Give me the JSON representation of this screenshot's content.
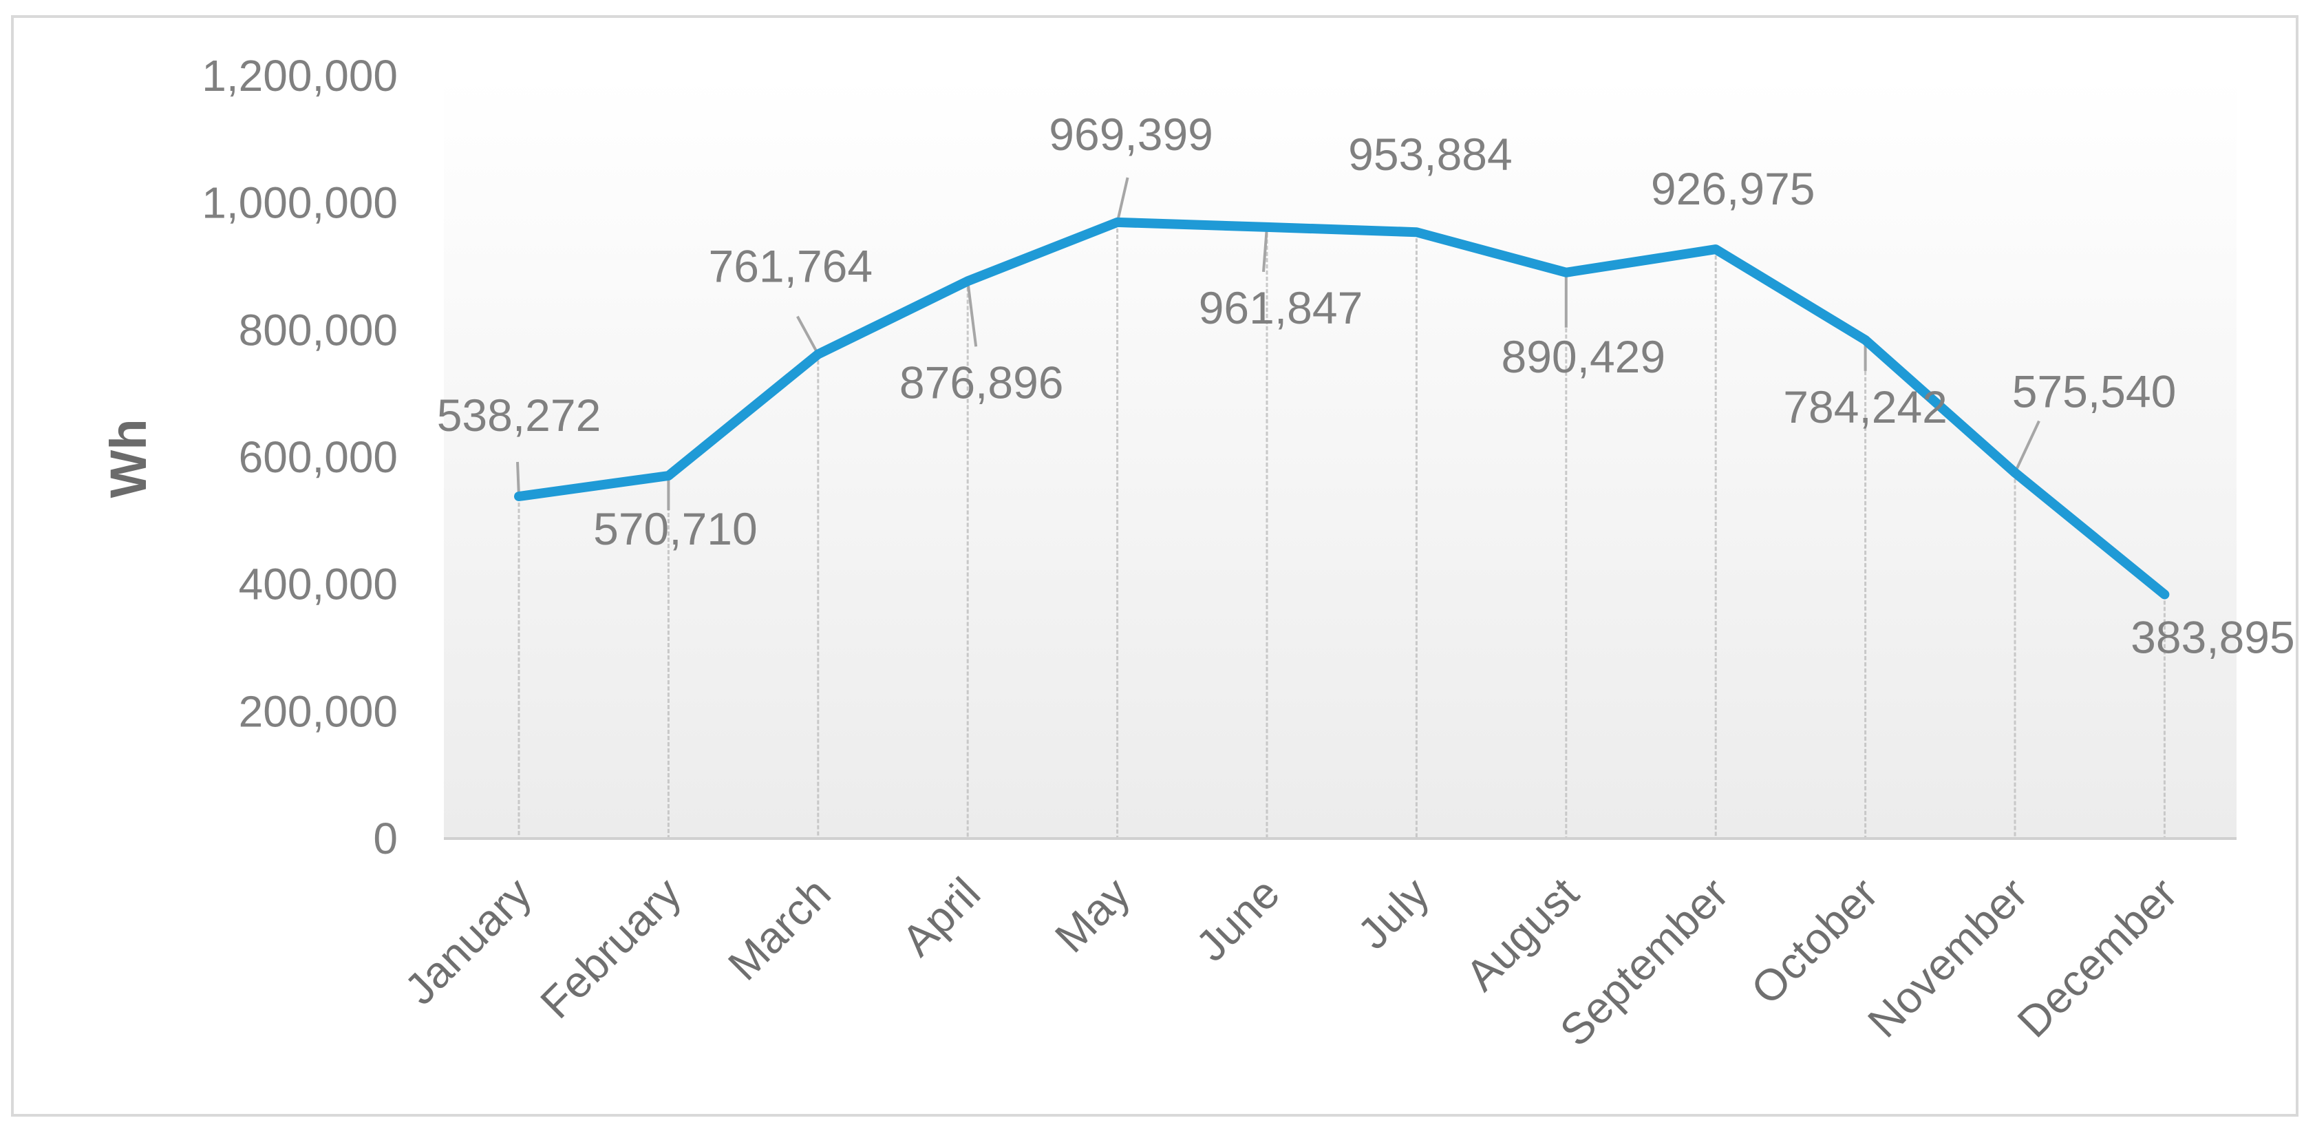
{
  "chart_data": {
    "type": "line",
    "title": "",
    "xlabel": "",
    "ylabel": "Wh",
    "ylim": [
      0,
      1200000
    ],
    "yticks": [
      "0",
      "200,000",
      "400,000",
      "600,000",
      "800,000",
      "1,000,000",
      "1,200,000"
    ],
    "categories": [
      "January",
      "February",
      "March",
      "April",
      "May",
      "June",
      "July",
      "August",
      "September",
      "October",
      "November",
      "December"
    ],
    "series": [
      {
        "name": "Wh",
        "values": [
          538272,
          570710,
          761764,
          876896,
          969399,
          961847,
          953884,
          890429,
          926975,
          784242,
          575540,
          383895
        ],
        "labels": [
          "538,272",
          "570,710",
          "761,764",
          "876,896",
          "969,399",
          "961,847",
          "953,884",
          "890,429",
          "926,975",
          "784,242",
          "575,540",
          "383,895"
        ]
      }
    ],
    "line_color": "#1f9ad6",
    "drop_lines": true,
    "grid": false
  }
}
